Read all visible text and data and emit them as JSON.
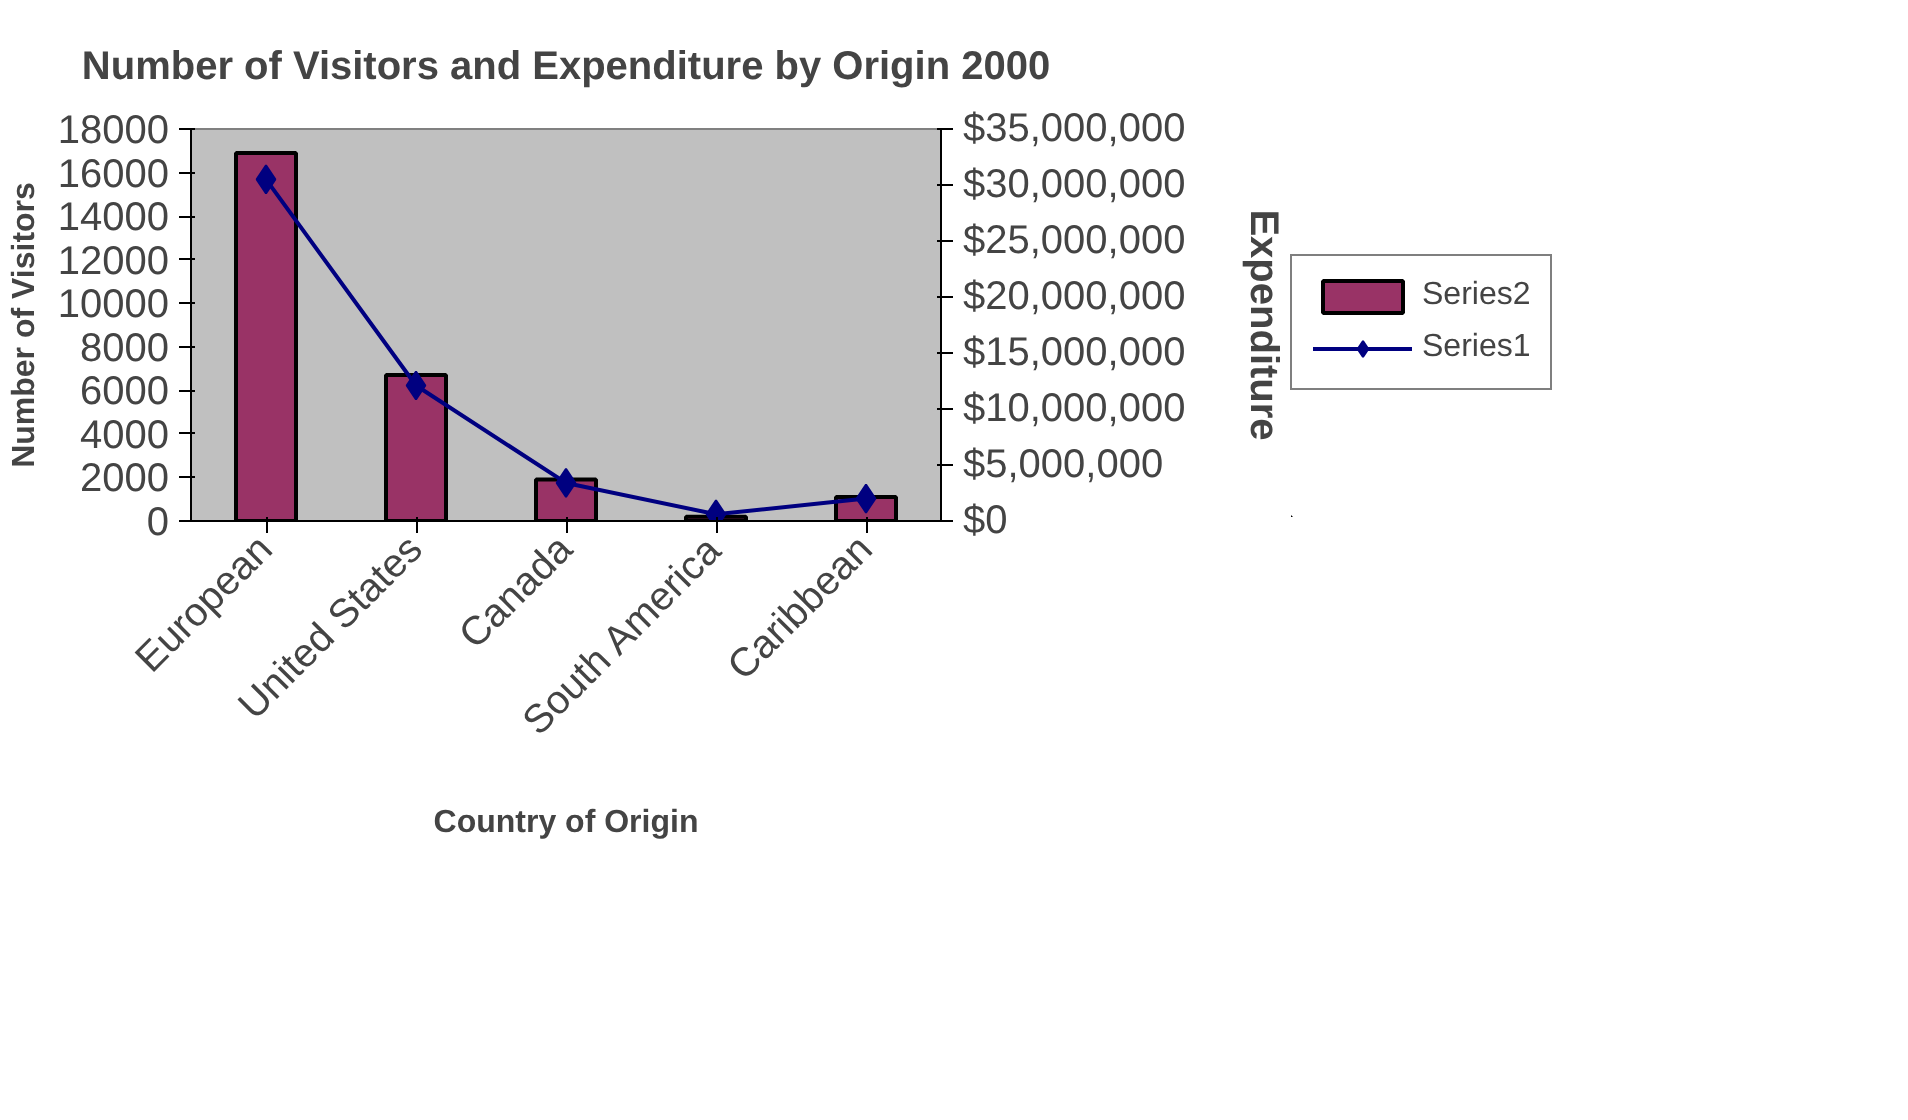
{
  "chart_data": {
    "type": "bar",
    "title": "Number of Visitors and Expenditure by Origin 2000",
    "xlabel": "Country of Origin",
    "ylabel": "Number of Visitors",
    "y2label": "Expenditure",
    "categories": [
      "European",
      "United States",
      "Canada",
      "South America",
      "Caribbean"
    ],
    "series": [
      {
        "name": "Series2",
        "color": "#993366",
        "values": [
          16900,
          6700,
          1900,
          200,
          1100
        ]
      },
      {
        "name": "Series1",
        "type": "line",
        "axis": "y2",
        "color": "#000080",
        "values": [
          30500000,
          12100000,
          3400000,
          600000,
          2000000
        ]
      }
    ],
    "ylim": [
      0,
      18000
    ],
    "yticks": [
      0,
      2000,
      4000,
      6000,
      8000,
      10000,
      12000,
      14000,
      16000,
      18000
    ],
    "y2lim": [
      0,
      35000000
    ],
    "y2ticks": [
      {
        "value": 0,
        "label": "$0"
      },
      {
        "value": 5000000,
        "label": "$5,000,000"
      },
      {
        "value": 10000000,
        "label": "$10,000,000"
      },
      {
        "value": 15000000,
        "label": "$15,000,000"
      },
      {
        "value": 20000000,
        "label": "$20,000,000"
      },
      {
        "value": 25000000,
        "label": "$25,000,000"
      },
      {
        "value": 30000000,
        "label": "$30,000,000"
      },
      {
        "value": 35000000,
        "label": "$35,000,000"
      }
    ],
    "grid": false,
    "legend": "right",
    "marker": "diamond"
  }
}
